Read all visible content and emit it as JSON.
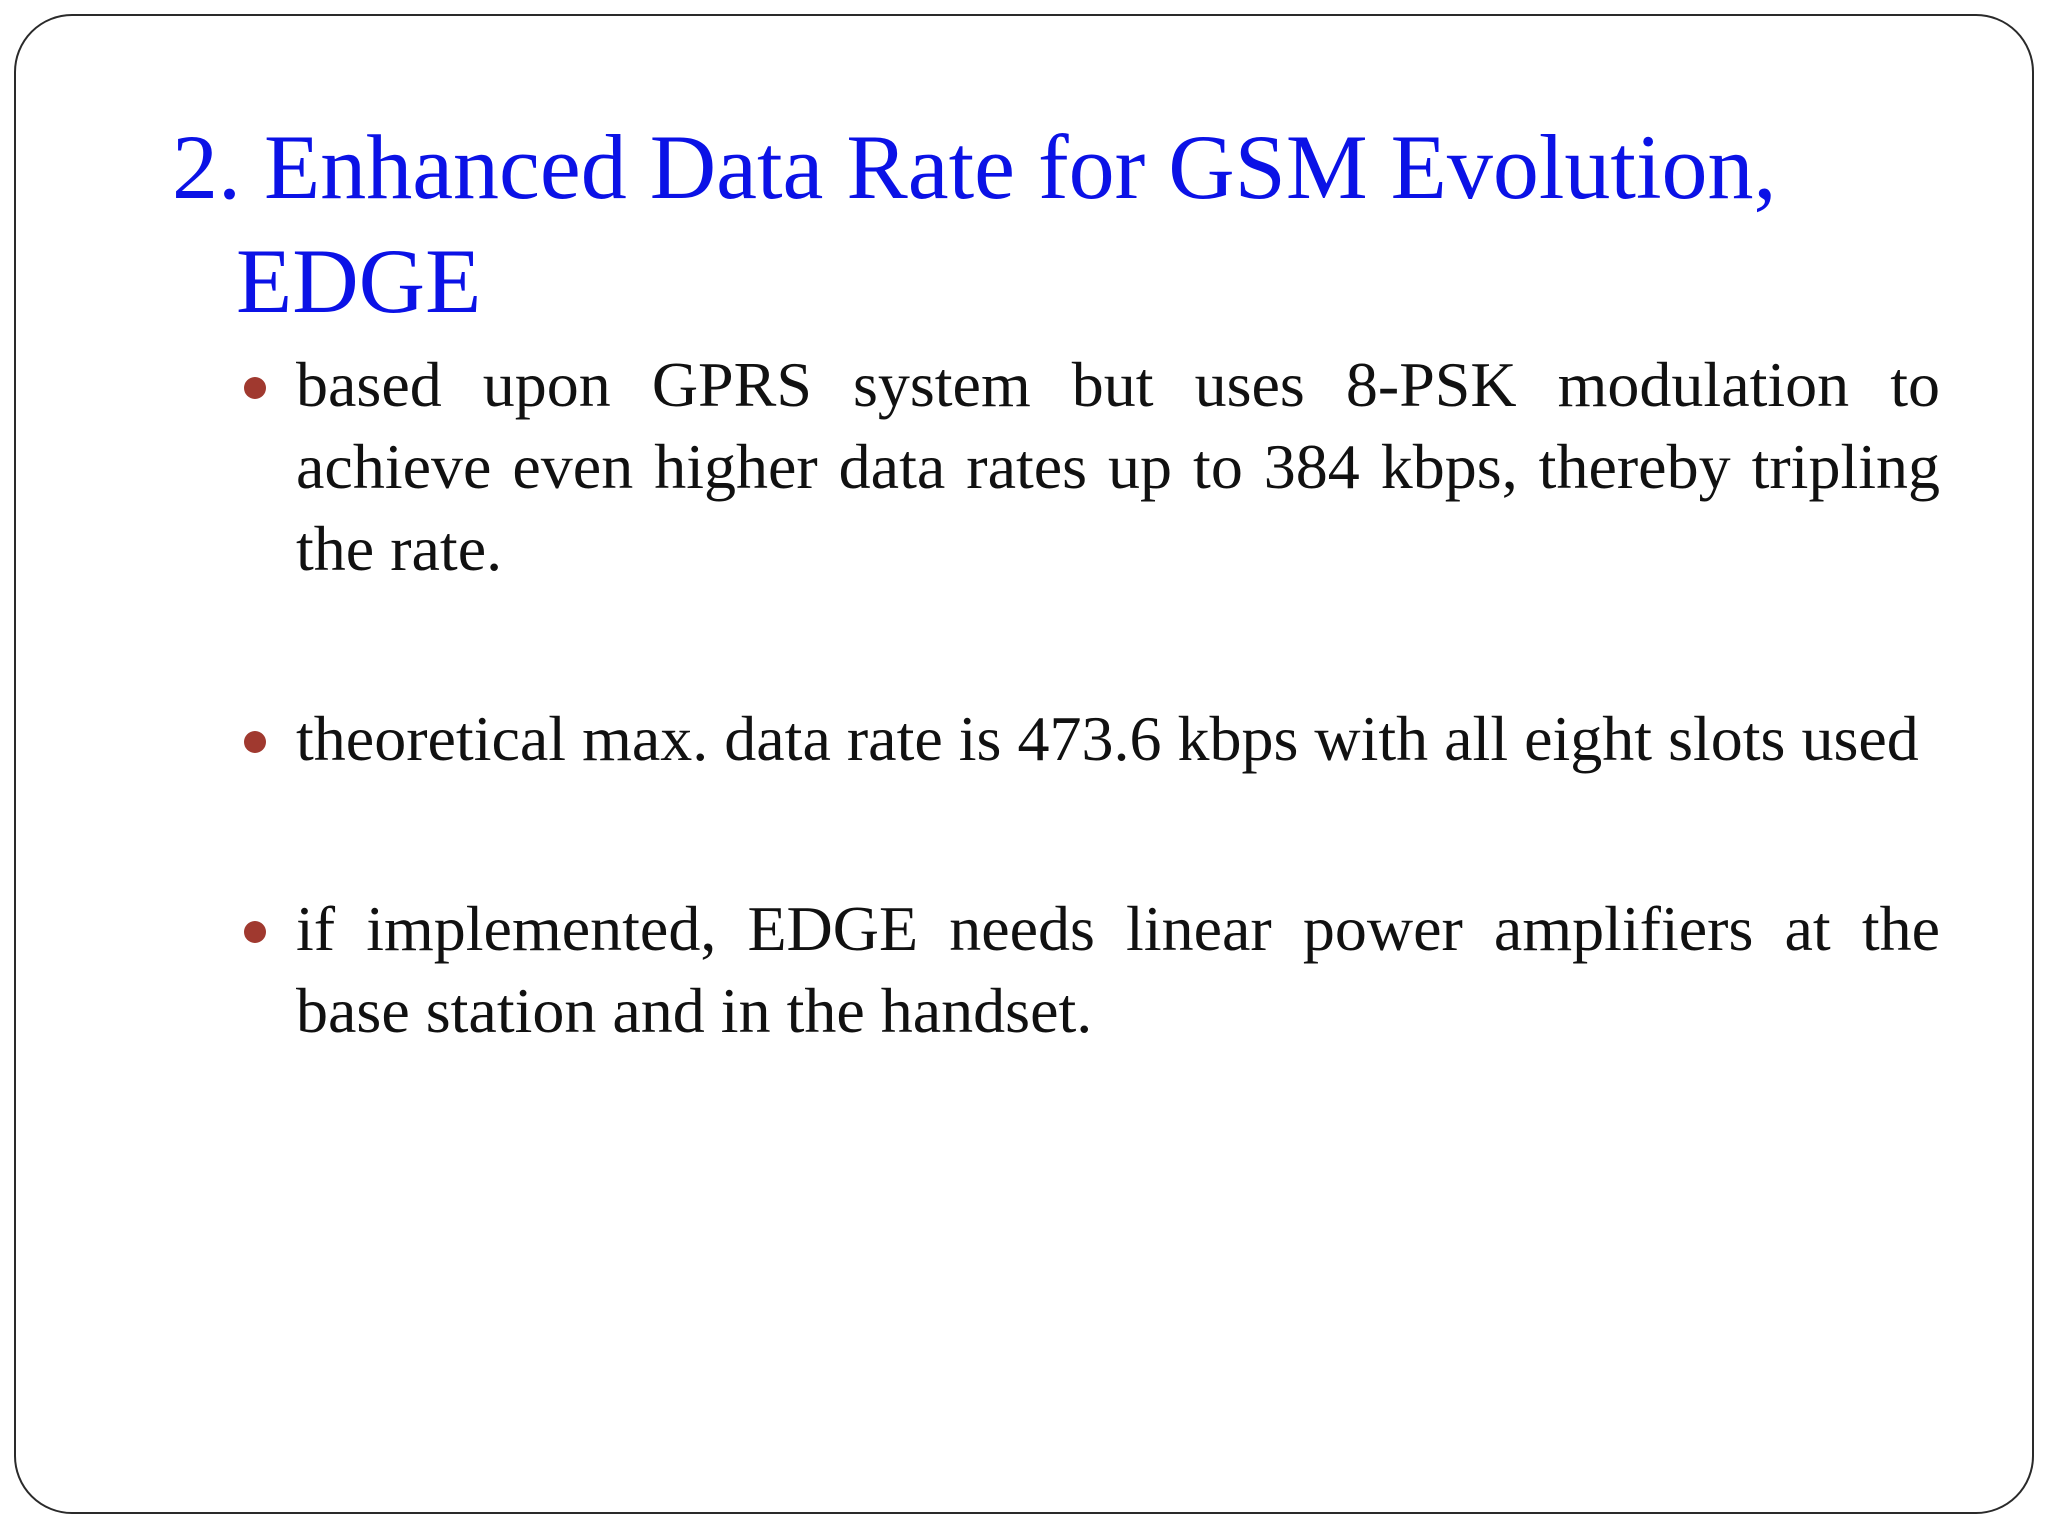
{
  "slide": {
    "title_line1": "2. Enhanced Data Rate for GSM Evolution,",
    "title_line2": "EDGE",
    "bullets": [
      "based upon GPRS system but uses 8-PSK modulation to achieve even higher data rates up to 384 kbps, thereby tripling the rate.",
      "theoretical max. data rate is 473.6 kbps with all eight slots used",
      "if implemented, EDGE needs linear power amplifiers at the base station and in the handset."
    ]
  },
  "colors": {
    "title": "#0b12e6",
    "body_text": "#111111",
    "bullet_dot": "#a0392f",
    "border": "#2a2a2a"
  },
  "icons": {
    "bullet": "bullet-dot-icon"
  }
}
